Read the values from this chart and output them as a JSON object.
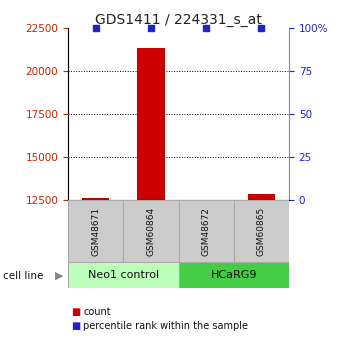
{
  "title": "GDS1411 / 224331_s_at",
  "samples": [
    "GSM48671",
    "GSM60864",
    "GSM48672",
    "GSM60865"
  ],
  "groups": [
    "Neo1 control",
    "HCaRG9"
  ],
  "group_sample_counts": [
    2,
    2
  ],
  "counts": [
    12610,
    21300,
    12520,
    12870
  ],
  "percentiles": [
    100,
    100,
    100,
    100
  ],
  "ylim_left": [
    12500,
    22500
  ],
  "ylim_right": [
    0,
    100
  ],
  "yticks_left": [
    12500,
    15000,
    17500,
    20000,
    22500
  ],
  "yticks_right": [
    0,
    25,
    50,
    75,
    100
  ],
  "bar_color": "#cc0000",
  "percentile_color": "#2222cc",
  "bg_color": "#ffffff",
  "grid_color": "#000000",
  "left_tick_color": "#cc2200",
  "right_tick_color": "#2222cc",
  "sample_box_color": "#cccccc",
  "group_box_color_1": "#bbffbb",
  "group_box_color_2": "#44cc44",
  "title_fontsize": 10,
  "bar_width": 0.5,
  "percentile_marker_size": 5,
  "legend_items": [
    "count",
    "percentile rank within the sample"
  ]
}
